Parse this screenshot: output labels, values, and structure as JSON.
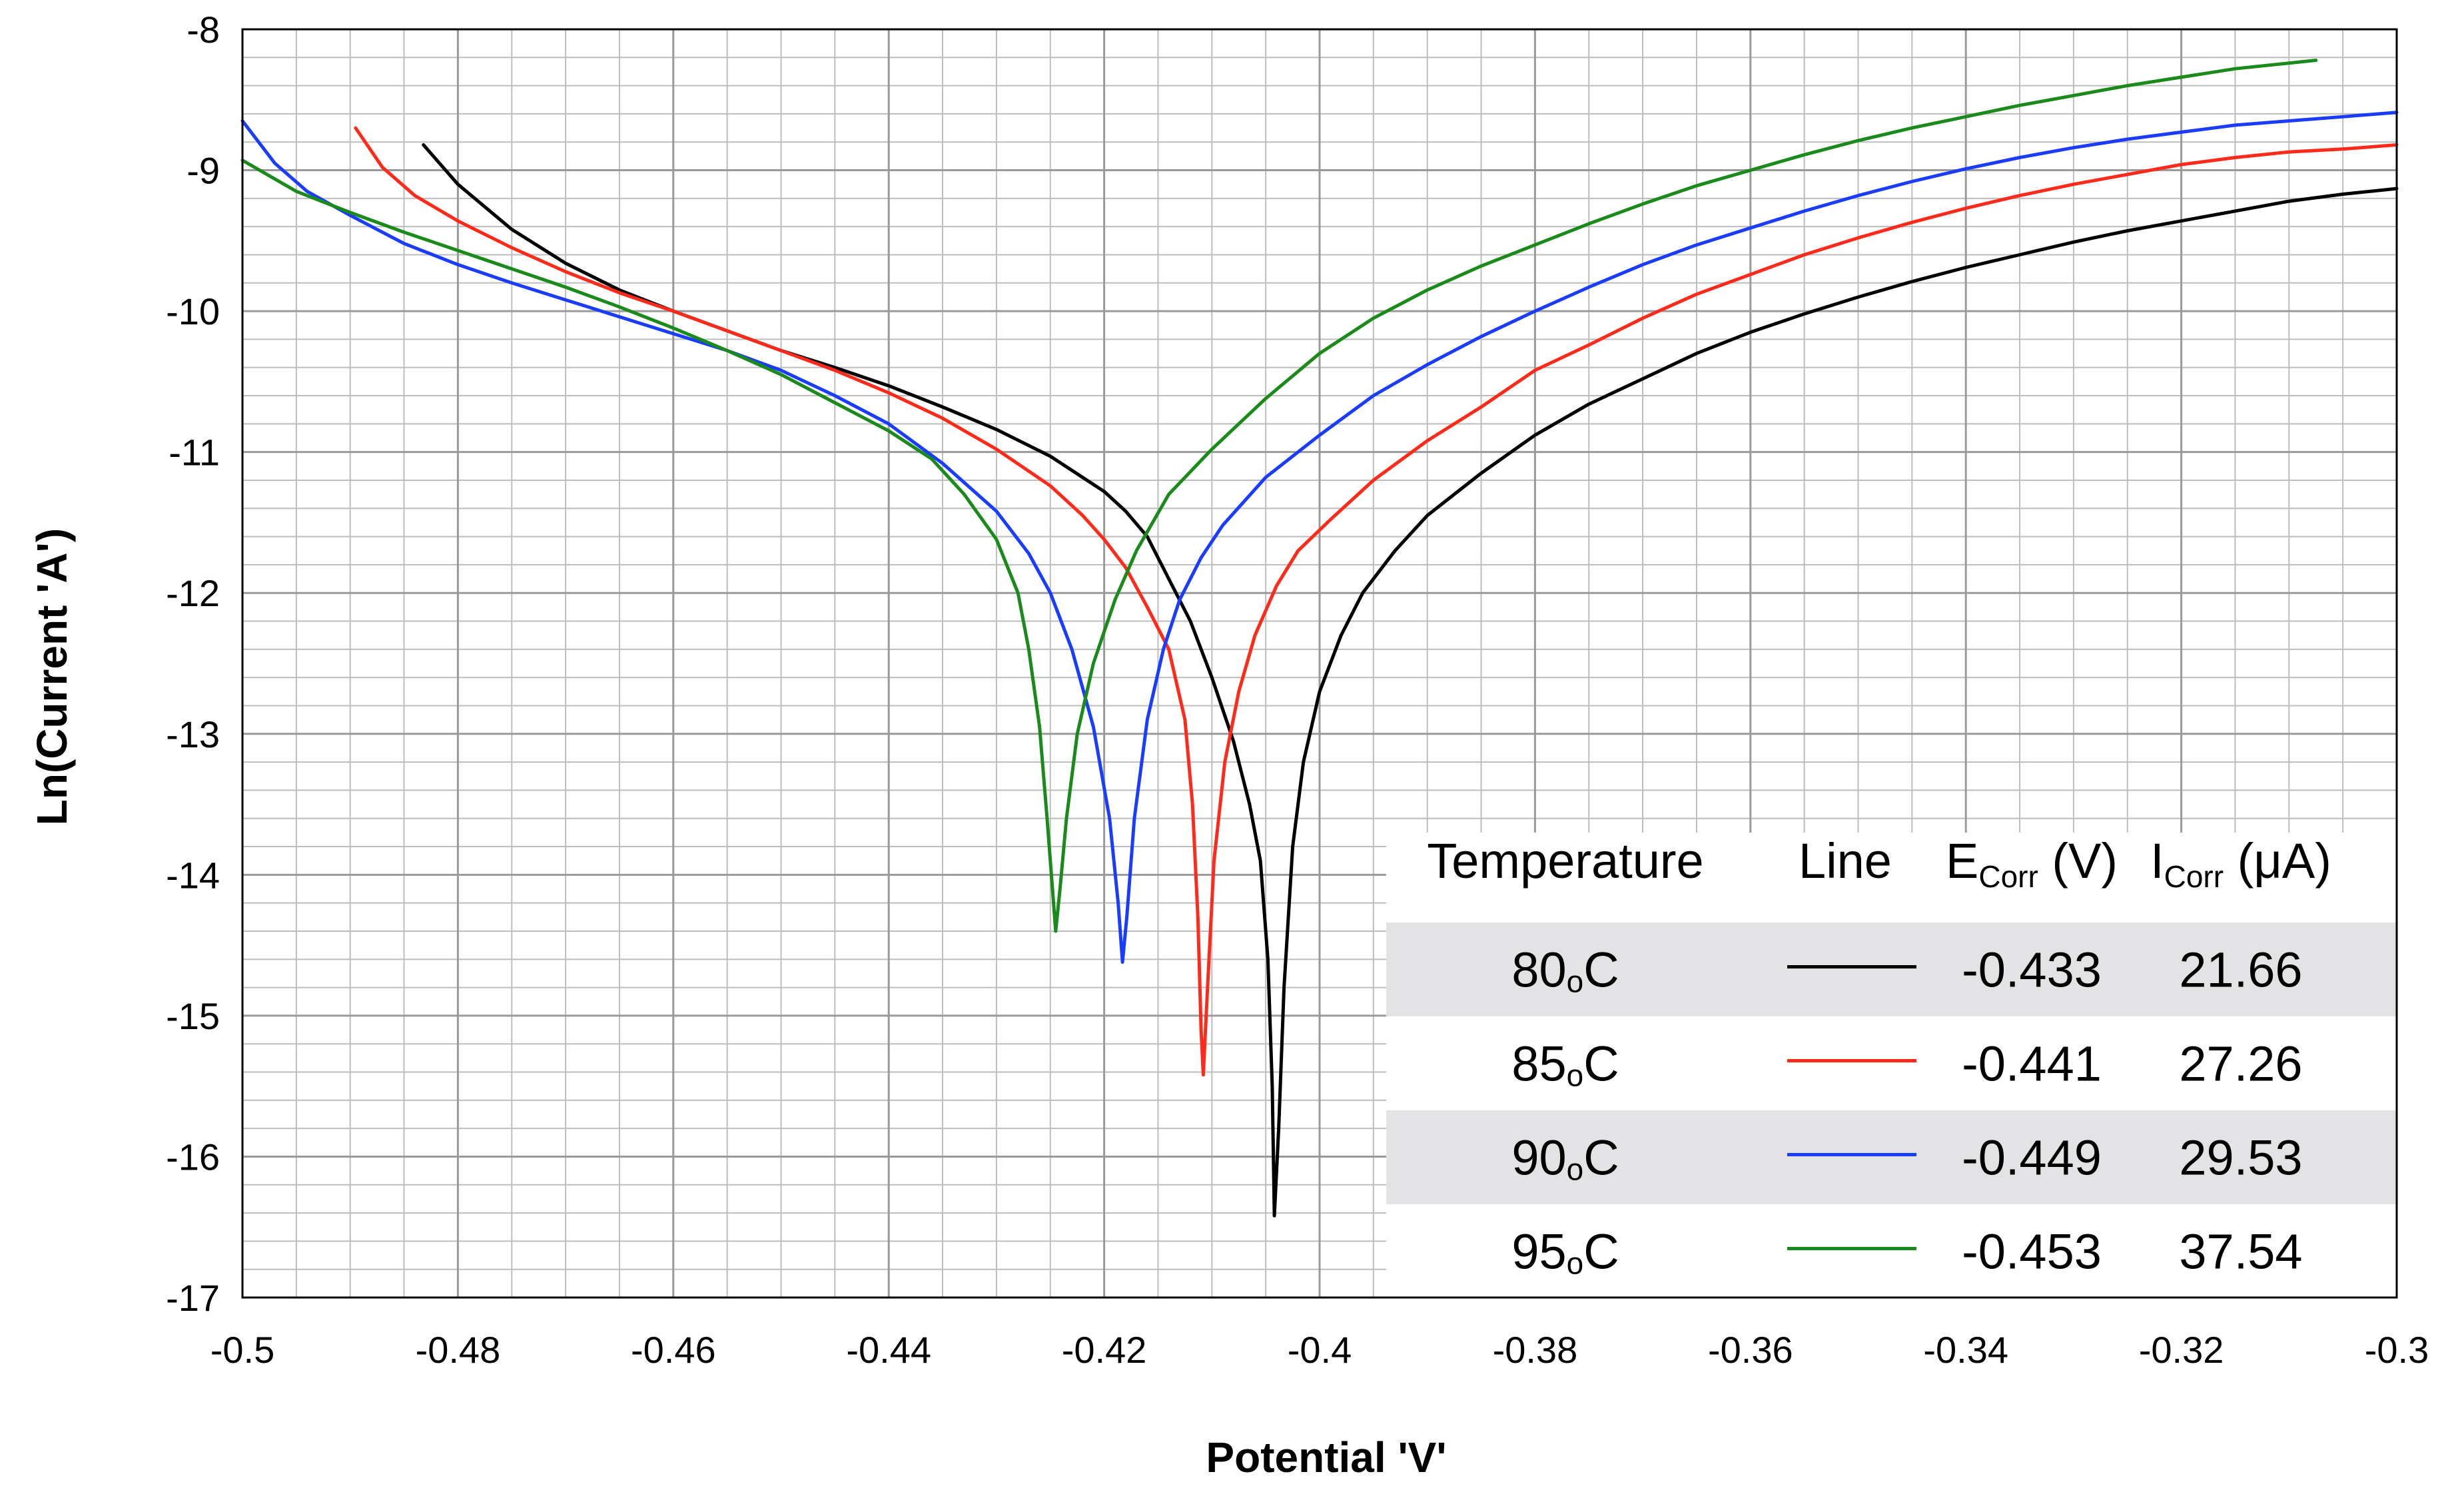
{
  "chart_data": {
    "type": "line",
    "title": "",
    "xlabel": "Potential 'V'",
    "ylabel": "Ln(Current 'A')",
    "xlim": [
      -0.5,
      -0.3
    ],
    "ylim": [
      -17,
      -8
    ],
    "grid": true,
    "x_ticks": [
      "-0.5",
      "-0.48",
      "-0.46",
      "-0.44",
      "-0.42",
      "-0.4",
      "-0.38",
      "-0.36",
      "-0.34",
      "-0.32",
      "-0.3"
    ],
    "y_ticks": [
      "-8",
      "-9",
      "-10",
      "-11",
      "-12",
      "-13",
      "-14",
      "-15",
      "-16",
      "-17"
    ],
    "series": [
      {
        "name": "80°C",
        "color": "#000000",
        "points": [
          [
            -0.4832,
            -8.82
          ],
          [
            -0.48,
            -9.1
          ],
          [
            -0.475,
            -9.42
          ],
          [
            -0.47,
            -9.66
          ],
          [
            -0.465,
            -9.85
          ],
          [
            -0.46,
            -10.0
          ],
          [
            -0.455,
            -10.14
          ],
          [
            -0.45,
            -10.28
          ],
          [
            -0.445,
            -10.4
          ],
          [
            -0.44,
            -10.53
          ],
          [
            -0.435,
            -10.68
          ],
          [
            -0.43,
            -10.84
          ],
          [
            -0.425,
            -11.03
          ],
          [
            -0.42,
            -11.28
          ],
          [
            -0.418,
            -11.42
          ],
          [
            -0.416,
            -11.6
          ],
          [
            -0.414,
            -11.9
          ],
          [
            -0.412,
            -12.2
          ],
          [
            -0.41,
            -12.6
          ],
          [
            -0.408,
            -13.05
          ],
          [
            -0.4065,
            -13.5
          ],
          [
            -0.4055,
            -13.9
          ],
          [
            -0.4048,
            -14.6
          ],
          [
            -0.4044,
            -15.5
          ],
          [
            -0.4042,
            -16.42
          ],
          [
            -0.4038,
            -15.8
          ],
          [
            -0.4033,
            -14.8
          ],
          [
            -0.4025,
            -13.8
          ],
          [
            -0.4015,
            -13.2
          ],
          [
            -0.4,
            -12.7
          ],
          [
            -0.398,
            -12.3
          ],
          [
            -0.396,
            -12.0
          ],
          [
            -0.393,
            -11.7
          ],
          [
            -0.39,
            -11.45
          ],
          [
            -0.385,
            -11.15
          ],
          [
            -0.38,
            -10.88
          ],
          [
            -0.375,
            -10.66
          ],
          [
            -0.37,
            -10.48
          ],
          [
            -0.365,
            -10.3
          ],
          [
            -0.36,
            -10.15
          ],
          [
            -0.355,
            -10.02
          ],
          [
            -0.35,
            -9.9
          ],
          [
            -0.345,
            -9.79
          ],
          [
            -0.34,
            -9.69
          ],
          [
            -0.335,
            -9.6
          ],
          [
            -0.33,
            -9.51
          ],
          [
            -0.325,
            -9.43
          ],
          [
            -0.32,
            -9.36
          ],
          [
            -0.315,
            -9.29
          ],
          [
            -0.31,
            -9.22
          ],
          [
            -0.305,
            -9.17
          ],
          [
            -0.3,
            -9.13
          ]
        ]
      },
      {
        "name": "85°C",
        "color": "#ff2a1a",
        "points": [
          [
            -0.4895,
            -8.7
          ],
          [
            -0.487,
            -8.98
          ],
          [
            -0.484,
            -9.18
          ],
          [
            -0.48,
            -9.36
          ],
          [
            -0.475,
            -9.55
          ],
          [
            -0.47,
            -9.72
          ],
          [
            -0.465,
            -9.87
          ],
          [
            -0.46,
            -10.0
          ],
          [
            -0.455,
            -10.14
          ],
          [
            -0.45,
            -10.28
          ],
          [
            -0.445,
            -10.42
          ],
          [
            -0.44,
            -10.58
          ],
          [
            -0.435,
            -10.76
          ],
          [
            -0.43,
            -10.98
          ],
          [
            -0.425,
            -11.24
          ],
          [
            -0.422,
            -11.45
          ],
          [
            -0.42,
            -11.62
          ],
          [
            -0.418,
            -11.82
          ],
          [
            -0.416,
            -12.1
          ],
          [
            -0.414,
            -12.4
          ],
          [
            -0.4125,
            -12.9
          ],
          [
            -0.4118,
            -13.5
          ],
          [
            -0.4113,
            -14.3
          ],
          [
            -0.411,
            -15.1
          ],
          [
            -0.4108,
            -15.42
          ],
          [
            -0.4104,
            -14.8
          ],
          [
            -0.4098,
            -13.9
          ],
          [
            -0.4088,
            -13.2
          ],
          [
            -0.4075,
            -12.7
          ],
          [
            -0.406,
            -12.3
          ],
          [
            -0.404,
            -11.95
          ],
          [
            -0.402,
            -11.7
          ],
          [
            -0.399,
            -11.48
          ],
          [
            -0.395,
            -11.2
          ],
          [
            -0.39,
            -10.92
          ],
          [
            -0.385,
            -10.68
          ],
          [
            -0.38,
            -10.42
          ],
          [
            -0.375,
            -10.24
          ],
          [
            -0.37,
            -10.05
          ],
          [
            -0.365,
            -9.88
          ],
          [
            -0.36,
            -9.74
          ],
          [
            -0.355,
            -9.6
          ],
          [
            -0.35,
            -9.48
          ],
          [
            -0.345,
            -9.37
          ],
          [
            -0.34,
            -9.27
          ],
          [
            -0.335,
            -9.18
          ],
          [
            -0.33,
            -9.1
          ],
          [
            -0.325,
            -9.03
          ],
          [
            -0.32,
            -8.96
          ],
          [
            -0.315,
            -8.91
          ],
          [
            -0.31,
            -8.87
          ],
          [
            -0.305,
            -8.85
          ],
          [
            -0.3,
            -8.82
          ]
        ]
      },
      {
        "name": "90°C",
        "color": "#1a3cff",
        "points": [
          [
            -0.5,
            -8.65
          ],
          [
            -0.497,
            -8.95
          ],
          [
            -0.494,
            -9.15
          ],
          [
            -0.49,
            -9.32
          ],
          [
            -0.485,
            -9.52
          ],
          [
            -0.48,
            -9.67
          ],
          [
            -0.475,
            -9.8
          ],
          [
            -0.47,
            -9.92
          ],
          [
            -0.465,
            -10.04
          ],
          [
            -0.46,
            -10.16
          ],
          [
            -0.455,
            -10.28
          ],
          [
            -0.45,
            -10.42
          ],
          [
            -0.445,
            -10.6
          ],
          [
            -0.44,
            -10.8
          ],
          [
            -0.435,
            -11.08
          ],
          [
            -0.43,
            -11.42
          ],
          [
            -0.427,
            -11.72
          ],
          [
            -0.425,
            -12.0
          ],
          [
            -0.423,
            -12.4
          ],
          [
            -0.421,
            -12.95
          ],
          [
            -0.4195,
            -13.6
          ],
          [
            -0.4187,
            -14.2
          ],
          [
            -0.4183,
            -14.62
          ],
          [
            -0.4179,
            -14.3
          ],
          [
            -0.4172,
            -13.6
          ],
          [
            -0.416,
            -12.9
          ],
          [
            -0.4145,
            -12.4
          ],
          [
            -0.413,
            -12.05
          ],
          [
            -0.411,
            -11.75
          ],
          [
            -0.409,
            -11.52
          ],
          [
            -0.405,
            -11.18
          ],
          [
            -0.4,
            -10.88
          ],
          [
            -0.395,
            -10.6
          ],
          [
            -0.39,
            -10.38
          ],
          [
            -0.385,
            -10.18
          ],
          [
            -0.38,
            -10.0
          ],
          [
            -0.375,
            -9.83
          ],
          [
            -0.37,
            -9.67
          ],
          [
            -0.365,
            -9.53
          ],
          [
            -0.36,
            -9.41
          ],
          [
            -0.355,
            -9.29
          ],
          [
            -0.35,
            -9.18
          ],
          [
            -0.345,
            -9.08
          ],
          [
            -0.34,
            -8.99
          ],
          [
            -0.335,
            -8.91
          ],
          [
            -0.33,
            -8.84
          ],
          [
            -0.325,
            -8.78
          ],
          [
            -0.32,
            -8.73
          ],
          [
            -0.315,
            -8.68
          ],
          [
            -0.31,
            -8.65
          ],
          [
            -0.305,
            -8.62
          ],
          [
            -0.3,
            -8.59
          ]
        ]
      },
      {
        "name": "95°C",
        "color": "#1a8a1a",
        "points": [
          [
            -0.5,
            -8.93
          ],
          [
            -0.495,
            -9.15
          ],
          [
            -0.49,
            -9.3
          ],
          [
            -0.485,
            -9.44
          ],
          [
            -0.48,
            -9.57
          ],
          [
            -0.475,
            -9.7
          ],
          [
            -0.47,
            -9.83
          ],
          [
            -0.465,
            -9.97
          ],
          [
            -0.46,
            -10.12
          ],
          [
            -0.455,
            -10.28
          ],
          [
            -0.45,
            -10.45
          ],
          [
            -0.445,
            -10.65
          ],
          [
            -0.44,
            -10.85
          ],
          [
            -0.436,
            -11.05
          ],
          [
            -0.433,
            -11.3
          ],
          [
            -0.43,
            -11.62
          ],
          [
            -0.428,
            -12.0
          ],
          [
            -0.427,
            -12.4
          ],
          [
            -0.426,
            -12.95
          ],
          [
            -0.4253,
            -13.6
          ],
          [
            -0.4248,
            -14.1
          ],
          [
            -0.4245,
            -14.4
          ],
          [
            -0.4241,
            -14.1
          ],
          [
            -0.4235,
            -13.6
          ],
          [
            -0.4225,
            -13.0
          ],
          [
            -0.421,
            -12.5
          ],
          [
            -0.419,
            -12.05
          ],
          [
            -0.417,
            -11.7
          ],
          [
            -0.414,
            -11.3
          ],
          [
            -0.41,
            -10.98
          ],
          [
            -0.405,
            -10.62
          ],
          [
            -0.4,
            -10.3
          ],
          [
            -0.395,
            -10.05
          ],
          [
            -0.39,
            -9.85
          ],
          [
            -0.385,
            -9.68
          ],
          [
            -0.38,
            -9.53
          ],
          [
            -0.375,
            -9.38
          ],
          [
            -0.37,
            -9.24
          ],
          [
            -0.365,
            -9.11
          ],
          [
            -0.36,
            -9.0
          ],
          [
            -0.355,
            -8.89
          ],
          [
            -0.35,
            -8.79
          ],
          [
            -0.345,
            -8.7
          ],
          [
            -0.34,
            -8.62
          ],
          [
            -0.335,
            -8.54
          ],
          [
            -0.33,
            -8.47
          ],
          [
            -0.325,
            -8.4
          ],
          [
            -0.32,
            -8.34
          ],
          [
            -0.315,
            -8.28
          ],
          [
            -0.3075,
            -8.22
          ]
        ]
      }
    ],
    "legend": {
      "headers": {
        "temperature": "Temperature",
        "line": "Line",
        "ecorr_main": "E",
        "ecorr_sub": "Corr",
        "ecorr_unit": " (V)",
        "icorr_main": "I",
        "icorr_sub": "Corr",
        "icorr_unit": " (μA)"
      },
      "rows": [
        {
          "temp_num": "80",
          "temp_sup": "o",
          "temp_unit": "C",
          "ecorr": "-0.433",
          "icorr": "21.66",
          "color": "#000000",
          "shaded": true
        },
        {
          "temp_num": "85",
          "temp_sup": "o",
          "temp_unit": "C",
          "ecorr": "-0.441",
          "icorr": "27.26",
          "color": "#ff2a1a",
          "shaded": false
        },
        {
          "temp_num": "90",
          "temp_sup": "o",
          "temp_unit": "C",
          "ecorr": "-0.449",
          "icorr": "29.53",
          "color": "#1a3cff",
          "shaded": true
        },
        {
          "temp_num": "95",
          "temp_sup": "o",
          "temp_unit": "C",
          "ecorr": "-0.453",
          "icorr": "37.54",
          "color": "#1a8a1a",
          "shaded": false
        }
      ],
      "placement": "bottom-right"
    }
  }
}
